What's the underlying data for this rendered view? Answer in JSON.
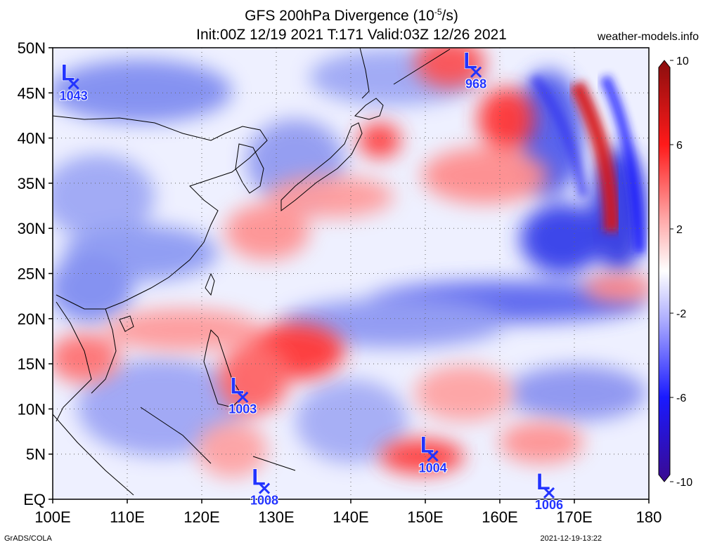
{
  "header": {
    "title_main": "GFS 200hPa Divergence (10",
    "title_exp": "-5",
    "title_unit": "/s)",
    "title_line2": "Init:00Z 12/19 2021 T:171 Valid:03Z 12/26 2021",
    "site": "weather-models.info"
  },
  "footer": {
    "credit": "GrADS/COLA",
    "timestamp": "2021-12-19-13:22"
  },
  "map": {
    "lat_labels": [
      "50N",
      "45N",
      "40N",
      "35N",
      "30N",
      "25N",
      "20N",
      "15N",
      "10N",
      "5N",
      "EQ"
    ],
    "lat_values": [
      50,
      45,
      40,
      35,
      30,
      25,
      20,
      15,
      10,
      5,
      0
    ],
    "lon_labels": [
      "100E",
      "110E",
      "120E",
      "130E",
      "140E",
      "150E",
      "160E",
      "170E",
      "180"
    ],
    "lon_values": [
      100,
      110,
      120,
      130,
      140,
      150,
      160,
      170,
      180
    ],
    "lat_range": [
      0,
      50
    ],
    "lon_range": [
      100,
      180
    ],
    "grid": true,
    "lows": [
      {
        "label": "L",
        "pressure": "1043",
        "lon": 102.8,
        "lat": 46.0
      },
      {
        "label": "L",
        "pressure": "968",
        "lon": 156.8,
        "lat": 47.3
      },
      {
        "label": "L",
        "pressure": "1003",
        "lon": 125.5,
        "lat": 11.3
      },
      {
        "label": "L",
        "pressure": "1008",
        "lon": 128.4,
        "lat": 1.2
      },
      {
        "label": "L",
        "pressure": "1004",
        "lon": 151.0,
        "lat": 4.8
      },
      {
        "label": "L",
        "pressure": "1006",
        "lon": 166.6,
        "lat": 0.7
      }
    ]
  },
  "colorbar": {
    "labels": [
      "10",
      "6",
      "2",
      "-2",
      "-6",
      "-10"
    ],
    "values": [
      10,
      6,
      2,
      -2,
      -6,
      -10
    ],
    "colors": [
      "#a01010",
      "#ff1818",
      "#ffb8b8",
      "#ffffff",
      "#b8b8ff",
      "#1818ff",
      "#3a0a90"
    ]
  }
}
